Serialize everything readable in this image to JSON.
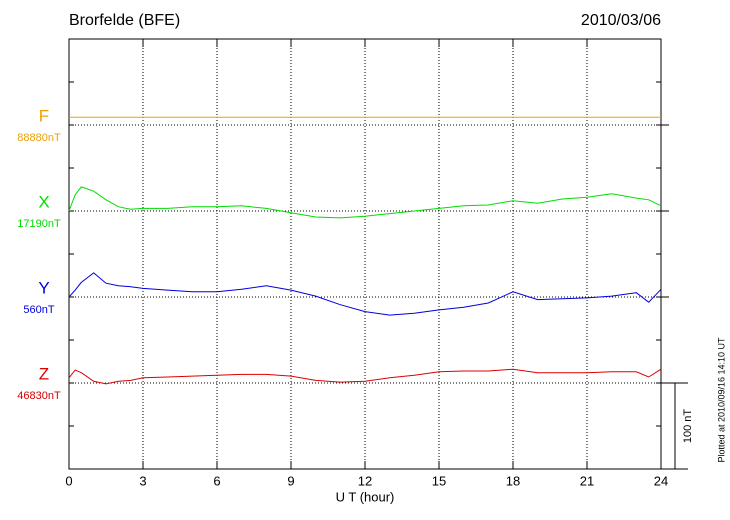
{
  "chart_data": {
    "type": "line",
    "title": "Brorfelde (BFE)",
    "date": "2010/03/06",
    "x_label": "U T (hour)",
    "footnote": "Plotted at 2010/09/16 14:10 UT",
    "xlim": [
      0,
      24
    ],
    "xticks": [
      0,
      3,
      6,
      9,
      12,
      15,
      18,
      21,
      24
    ],
    "grid": true,
    "scale_bar": {
      "value": 100,
      "label": "100 nT"
    },
    "x": [
      0,
      0.25,
      0.5,
      1,
      1.5,
      2,
      2.5,
      3,
      4,
      5,
      6,
      7,
      8,
      9,
      10,
      11,
      12,
      13,
      14,
      15,
      16,
      17,
      18,
      19,
      20,
      21,
      22,
      23,
      23.5,
      24
    ],
    "series": [
      {
        "name": "F",
        "color": "#f0a000",
        "baseline": {
          "value": 88880,
          "label": "88880nT"
        },
        "values": [
          88889,
          88889,
          88889,
          88889,
          88889,
          88889,
          88889,
          88889,
          88889,
          88889,
          88889,
          88889,
          88889,
          88889,
          88889,
          88889,
          88889,
          88889,
          88889,
          88889,
          88889,
          88889,
          88889,
          88889,
          88889,
          88889,
          88889,
          88889,
          88889,
          88889
        ]
      },
      {
        "name": "X",
        "color": "#00dd00",
        "baseline": {
          "value": 17190,
          "label": "17190nT"
        },
        "values": [
          17190,
          17209,
          17218,
          17213,
          17203,
          17195,
          17192,
          17193,
          17193,
          17195,
          17195,
          17196,
          17193,
          17188,
          17183,
          17182,
          17184,
          17187,
          17190,
          17193,
          17196,
          17197,
          17202,
          17199,
          17204,
          17206,
          17210,
          17205,
          17203,
          17196
        ]
      },
      {
        "name": "Y",
        "color": "#0000dd",
        "baseline": {
          "value": 560,
          "label": "560nT"
        },
        "values": [
          560,
          568,
          577,
          588,
          576,
          573,
          572,
          570,
          568,
          566,
          566,
          569,
          573,
          568,
          561,
          551,
          543,
          539,
          541,
          545,
          548,
          553,
          566,
          557,
          558,
          559,
          561,
          565,
          554,
          569
        ]
      },
      {
        "name": "Z",
        "color": "#dd0000",
        "baseline": {
          "value": 46830,
          "label": "46830nT"
        },
        "values": [
          46836,
          46845,
          46842,
          46832,
          46829,
          46832,
          46833,
          46836,
          46837,
          46838,
          46839,
          46840,
          46840,
          46838,
          46833,
          46831,
          46832,
          46836,
          46839,
          46843,
          46844,
          46844,
          46846,
          46842,
          46842,
          46842,
          46843,
          46843,
          46837,
          46846
        ]
      }
    ]
  }
}
